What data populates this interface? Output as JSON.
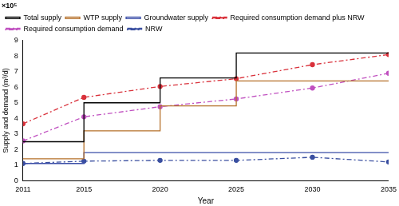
{
  "chart_data": {
    "type": "line",
    "annotations": [
      "×10⁵"
    ],
    "x_label": "Year",
    "y_label": "Supply and demand (m³/d)",
    "x": [
      2011,
      2015,
      2020,
      2025,
      2030,
      2035
    ],
    "xlim": [
      2011,
      2035
    ],
    "xticks": [
      2011,
      2015,
      2020,
      2025,
      2030,
      2035
    ],
    "ylim": [
      0,
      9
    ],
    "yticks": [
      0,
      1,
      2,
      3,
      4,
      5,
      6,
      7,
      8,
      9
    ],
    "grid": false,
    "legend": "top",
    "series": [
      {
        "name": "Total supply",
        "type": "step",
        "color": "#000000",
        "line_style": "solid",
        "marker": "none",
        "values": [
          2.5,
          5.0,
          6.6,
          8.2,
          8.2,
          8.2
        ]
      },
      {
        "name": "WTP supply",
        "type": "step",
        "color": "#b5702a",
        "line_style": "solid",
        "marker": "none",
        "values": [
          1.4,
          3.2,
          4.8,
          6.4,
          6.4,
          6.4
        ]
      },
      {
        "name": "Groundwater supply",
        "type": "step",
        "color": "#3b4ea8",
        "line_style": "solid",
        "marker": "none",
        "values": [
          1.1,
          1.8,
          1.8,
          1.8,
          1.8,
          1.8
        ]
      },
      {
        "name": "Required consumption demand plus NRW",
        "type": "line",
        "color": "#d9313b",
        "line_style": "dashdot",
        "marker": "circle",
        "values": [
          3.65,
          5.35,
          6.05,
          6.55,
          7.45,
          8.1
        ]
      },
      {
        "name": "Required consumption demand",
        "type": "line",
        "color": "#c050c0",
        "line_style": "dashdot",
        "marker": "circle",
        "values": [
          2.55,
          4.1,
          4.75,
          5.25,
          5.95,
          6.9
        ]
      },
      {
        "name": "NRW",
        "type": "line",
        "color": "#3a4fa0",
        "line_style": "dashdot",
        "marker": "circle",
        "values": [
          1.1,
          1.25,
          1.3,
          1.3,
          1.5,
          1.2
        ]
      }
    ]
  }
}
